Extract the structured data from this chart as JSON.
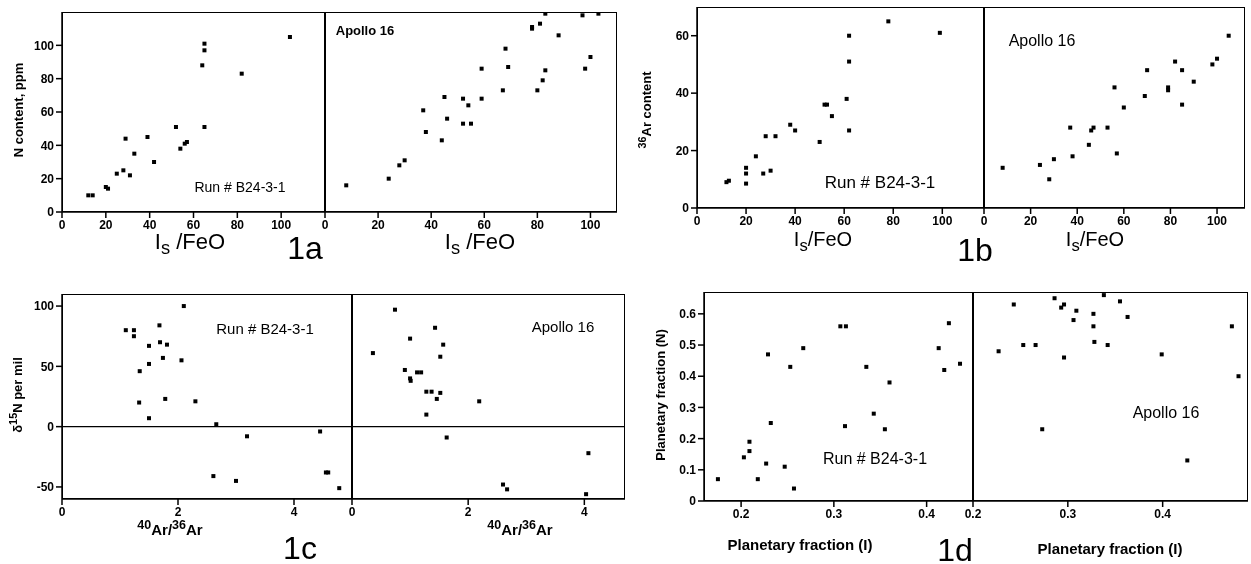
{
  "chart_data": [
    {
      "type": "scatter",
      "xlabel": "I$_{s}$ /FeO",
      "ylabel": "N content, ppm",
      "annotations": [
        "Run # B24-3-1",
        "1a"
      ],
      "color": "#000000",
      "marker": "square",
      "xlim": [
        0,
        120
      ],
      "ylim": [
        0,
        120
      ],
      "xticks": [
        0,
        20,
        40,
        60,
        80,
        100
      ],
      "yticks": [
        0,
        20,
        40,
        60,
        80,
        100
      ],
      "grid": false,
      "x": [
        12,
        14,
        20,
        21,
        25,
        28,
        29,
        31,
        33,
        39,
        42,
        52,
        54,
        56,
        57,
        64,
        65,
        65,
        65,
        82,
        104
      ],
      "values": [
        10,
        10,
        15,
        14,
        23,
        25,
        44,
        22,
        35,
        45,
        30,
        51,
        38,
        41,
        42,
        88,
        97,
        101,
        51,
        83,
        105
      ]
    },
    {
      "type": "scatter",
      "xlabel": "I$_{s}$ /FeO",
      "annotations": [
        "Apollo 16"
      ],
      "color": "#000000",
      "marker": "square",
      "xlim": [
        0,
        110
      ],
      "ylim": [
        0,
        120
      ],
      "xticks": [
        0,
        20,
        40,
        60,
        80,
        100
      ],
      "yticks": [
        0,
        20,
        40,
        60,
        80,
        100
      ],
      "grid": false,
      "tick_labels": "x",
      "x": [
        8,
        24,
        28,
        30,
        37,
        38,
        44,
        45,
        46,
        52,
        52,
        54,
        55,
        59,
        59,
        67,
        68,
        69,
        78,
        78,
        81,
        83,
        80,
        82,
        83,
        88,
        97,
        98,
        100,
        103
      ],
      "values": [
        16,
        20,
        28,
        31,
        61,
        48,
        43,
        69,
        56,
        68,
        53,
        64,
        53,
        86,
        68,
        73,
        98,
        87,
        111,
        110,
        113,
        119,
        73,
        79,
        85,
        106,
        118,
        86,
        93,
        119
      ]
    },
    {
      "type": "scatter",
      "xlabel": "I$_{s}$/FeO",
      "ylabel": "$^{36}$Ar content",
      "annotations": [
        "Run # B24-3-1",
        "1b"
      ],
      "color": "#000000",
      "marker": "square",
      "xlim": [
        0,
        117
      ],
      "ylim": [
        0,
        70
      ],
      "xticks": [
        0,
        20,
        40,
        60,
        80,
        100
      ],
      "yticks": [
        0,
        20,
        40,
        60
      ],
      "grid": false,
      "x": [
        12,
        13,
        20,
        20,
        20,
        24,
        28,
        27,
        30,
        32,
        38,
        40,
        50,
        52,
        53,
        55,
        62,
        62,
        61,
        62,
        78,
        99
      ],
      "values": [
        9,
        9.5,
        14,
        12,
        8.5,
        18,
        25,
        12,
        13,
        25,
        29,
        27,
        23,
        36,
        36,
        32,
        60,
        51,
        38,
        27,
        65,
        61
      ]
    },
    {
      "type": "scatter",
      "xlabel": "I$_{s}$/FeO",
      "annotations": [
        "Apollo 16"
      ],
      "color": "#000000",
      "marker": "square",
      "xlim": [
        0,
        112
      ],
      "ylim": [
        0,
        70
      ],
      "xticks": [
        0,
        20,
        40,
        60,
        80,
        100
      ],
      "yticks": [
        0,
        20,
        40,
        60
      ],
      "grid": false,
      "tick_labels": "x",
      "x": [
        8,
        24,
        30,
        28,
        37,
        38,
        45,
        46,
        47,
        53,
        56,
        57,
        60,
        69,
        70,
        79,
        79,
        82,
        85,
        85,
        90,
        98,
        100,
        105
      ],
      "values": [
        14,
        15,
        17,
        10,
        28,
        18,
        22,
        27,
        28,
        28,
        42,
        19,
        35,
        39,
        48,
        42,
        41,
        51,
        48,
        36,
        44,
        50,
        52,
        60
      ]
    },
    {
      "type": "scatter",
      "xlabel": "$^{40}$Ar/$^{36}$Ar",
      "ylabel": "δ$^{15}$N per mil",
      "annotations": [
        "Run # B24-3-1",
        "1c"
      ],
      "color": "#000000",
      "marker": "square",
      "xlim": [
        0,
        5
      ],
      "ylim": [
        -60,
        110
      ],
      "xticks": [
        0,
        2,
        4
      ],
      "yticks": [
        -50,
        0,
        50,
        100
      ],
      "grid": false,
      "ref_lines": [
        {
          "axis": "y",
          "value": 0,
          "color": "#000000"
        }
      ],
      "x": [
        1.1,
        1.24,
        1.24,
        1.34,
        1.33,
        1.5,
        1.5,
        1.5,
        1.68,
        1.69,
        1.74,
        1.81,
        1.78,
        2.06,
        2.1,
        2.3,
        2.66,
        2.61,
        3.0,
        3.19,
        4.45,
        4.55,
        4.59,
        4.78
      ],
      "values": [
        80,
        80,
        75,
        46,
        20,
        67,
        52,
        7,
        84,
        70,
        57,
        68,
        23,
        55,
        100,
        21,
        2,
        -41,
        -45,
        -8,
        -4,
        -38,
        -38,
        -51
      ]
    },
    {
      "type": "scatter",
      "xlabel": "$^{40}$Ar/$^{36}$Ar",
      "annotations": [
        "Apollo 16"
      ],
      "color": "#000000",
      "marker": "square",
      "xlim": [
        0,
        4.7
      ],
      "ylim": [
        -60,
        110
      ],
      "xticks": [
        0,
        2,
        4
      ],
      "yticks": [
        -50,
        0,
        50,
        100
      ],
      "grid": false,
      "tick_labels": "x",
      "ref_lines": [
        {
          "axis": "y",
          "value": 0,
          "color": "#000000"
        }
      ],
      "x": [
        0.36,
        0.74,
        1.0,
        0.91,
        1.0,
        1.01,
        1.12,
        1.19,
        1.28,
        1.37,
        1.28,
        1.43,
        1.46,
        1.52,
        1.52,
        1.57,
        1.63,
        2.19,
        2.6,
        2.67,
        4.07,
        4.03
      ],
      "values": [
        61,
        97,
        73,
        47,
        40,
        38,
        45,
        45,
        29,
        29,
        10,
        82,
        23,
        28,
        58,
        68,
        -9,
        21,
        -48,
        -52,
        -22,
        -56
      ]
    },
    {
      "type": "scatter",
      "xlabel": "Planetary fraction (I)",
      "ylabel": "Planetary fraction (N)",
      "annotations": [
        "Run # B24-3-1",
        "1d"
      ],
      "color": "#000000",
      "marker": "square",
      "xlim": [
        0.16,
        0.45
      ],
      "ylim": [
        0,
        0.67
      ],
      "xticks": [
        0.2,
        0.3,
        0.4
      ],
      "yticks": [
        0,
        0.1,
        0.2,
        0.3,
        0.4,
        0.5,
        0.6
      ],
      "grid": false,
      "x": [
        0.175,
        0.203,
        0.209,
        0.209,
        0.218,
        0.227,
        0.229,
        0.232,
        0.247,
        0.253,
        0.257,
        0.267,
        0.307,
        0.313,
        0.312,
        0.335,
        0.343,
        0.36,
        0.355,
        0.424,
        0.413,
        0.419,
        0.436
      ],
      "values": [
        0.07,
        0.14,
        0.19,
        0.16,
        0.07,
        0.12,
        0.47,
        0.25,
        0.11,
        0.43,
        0.04,
        0.49,
        0.56,
        0.56,
        0.24,
        0.43,
        0.28,
        0.38,
        0.23,
        0.57,
        0.49,
        0.42,
        0.44
      ]
    },
    {
      "type": "scatter",
      "xlabel": "Planetary fraction (I)",
      "annotations": [
        "Apollo 16"
      ],
      "color": "#000000",
      "marker": "square",
      "xlim": [
        0.2,
        0.49
      ],
      "ylim": [
        0,
        0.67
      ],
      "xticks": [
        0.2,
        0.3,
        0.4
      ],
      "yticks": [
        0,
        0.1,
        0.2,
        0.3,
        0.4,
        0.5,
        0.6
      ],
      "grid": false,
      "tick_labels": "x",
      "x": [
        0.227,
        0.243,
        0.253,
        0.266,
        0.273,
        0.286,
        0.293,
        0.296,
        0.296,
        0.306,
        0.309,
        0.327,
        0.327,
        0.328,
        0.338,
        0.342,
        0.355,
        0.363,
        0.399,
        0.426,
        0.473,
        0.48
      ],
      "values": [
        0.48,
        0.63,
        0.5,
        0.5,
        0.23,
        0.65,
        0.62,
        0.63,
        0.46,
        0.58,
        0.61,
        0.6,
        0.56,
        0.51,
        0.66,
        0.5,
        0.64,
        0.59,
        0.47,
        0.13,
        0.56,
        0.4
      ]
    }
  ]
}
